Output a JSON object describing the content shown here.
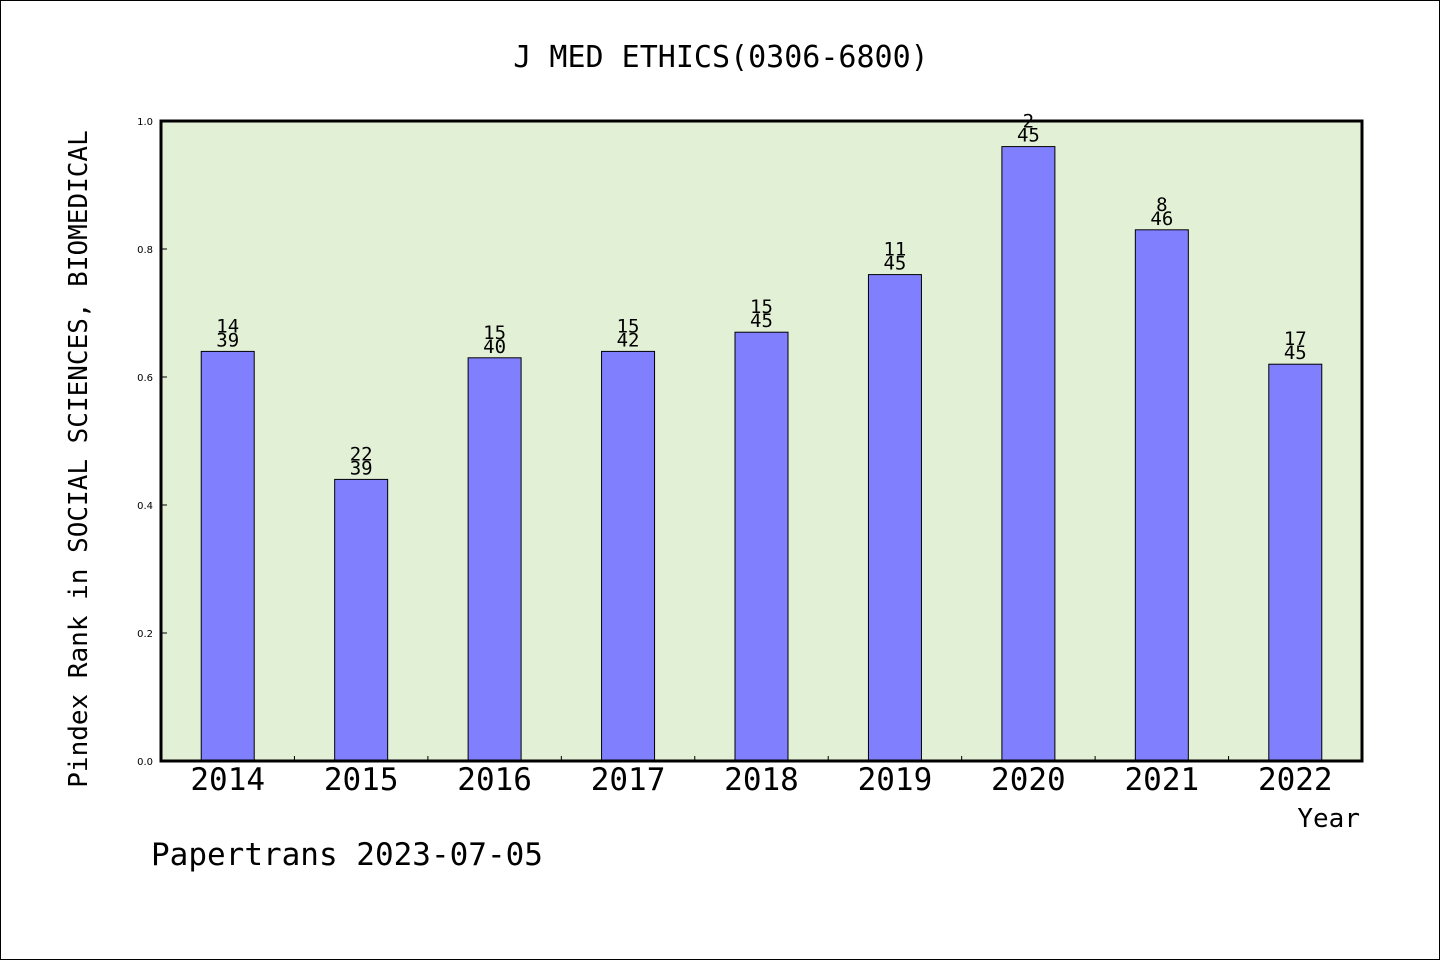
{
  "chart_data": {
    "type": "bar",
    "title": "J MED ETHICS(0306-6800)",
    "xlabel": "Year",
    "ylabel": "Pindex Rank in SOCIAL SCIENCES, BIOMEDICAL",
    "categories": [
      "2014",
      "2015",
      "2016",
      "2017",
      "2018",
      "2019",
      "2020",
      "2021",
      "2022"
    ],
    "values": [
      0.64,
      0.44,
      0.63,
      0.64,
      0.67,
      0.76,
      0.96,
      0.83,
      0.62
    ],
    "rank": [
      "14",
      "22",
      "15",
      "15",
      "15",
      "11",
      "2",
      "8",
      "17"
    ],
    "total": [
      "39",
      "39",
      "40",
      "42",
      "45",
      "45",
      "45",
      "46",
      "45"
    ],
    "ylim": [
      0,
      1.0
    ],
    "yticks": [
      "0.0",
      "0.2",
      "0.4",
      "0.6",
      "0.8",
      "1.0"
    ],
    "grid": false,
    "colors": {
      "plot_background": "#e2f0d6",
      "bar_fill": "#8080ff",
      "bar_stroke": "#000000",
      "axis": "#000000"
    }
  },
  "footer": {
    "credit": "Papertrans 2023-07-05"
  }
}
